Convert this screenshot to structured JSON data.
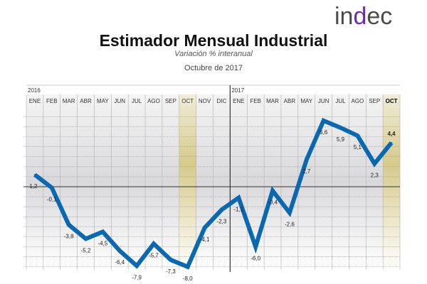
{
  "logo": "indec",
  "chart_data": {
    "type": "line",
    "title": "Estimador Mensual Industrial",
    "subtitle": "Variación % interanual",
    "date": "Octubre de 2017",
    "years": [
      {
        "label": "2016",
        "start": 0
      },
      {
        "label": "2017",
        "start": 12
      }
    ],
    "categories": [
      "ENE",
      "FEB",
      "MAR",
      "ABR",
      "MAY",
      "JUN",
      "JUL",
      "AGO",
      "SEP",
      "OCT",
      "NOV",
      "DIC",
      "ENE",
      "FEB",
      "MAR",
      "ABR",
      "MAY",
      "JUN",
      "JUL",
      "AGO",
      "SEP",
      "OCT"
    ],
    "values": [
      1.2,
      -0.1,
      -3.8,
      -5.2,
      -4.5,
      -6.4,
      -7.9,
      -5.7,
      -7.3,
      -8.0,
      -4.1,
      -2.3,
      -1.1,
      -6.0,
      -0.4,
      -2.6,
      2.7,
      6.6,
      5.9,
      5.1,
      2.3,
      4.4
    ],
    "value_labels": [
      "1,2",
      "-0,1",
      "-3,8",
      "-5,2",
      "-4,5",
      "-6,4",
      "-7,9",
      "-5,7",
      "-7,3",
      "-8,0",
      "-4,1",
      "-2,3",
      "-1,1",
      "-6,0",
      "-0,4",
      "-2,6",
      "2,7",
      "6,6",
      "5,9",
      "5,1",
      "2,3",
      "4,4"
    ],
    "highlighted": [
      9,
      21
    ],
    "ylim": [
      -8.2,
      10
    ],
    "grid": true,
    "colors": {
      "line": "#0a68b0",
      "highlight": "#d6ca8c",
      "zero": "#333333"
    }
  }
}
